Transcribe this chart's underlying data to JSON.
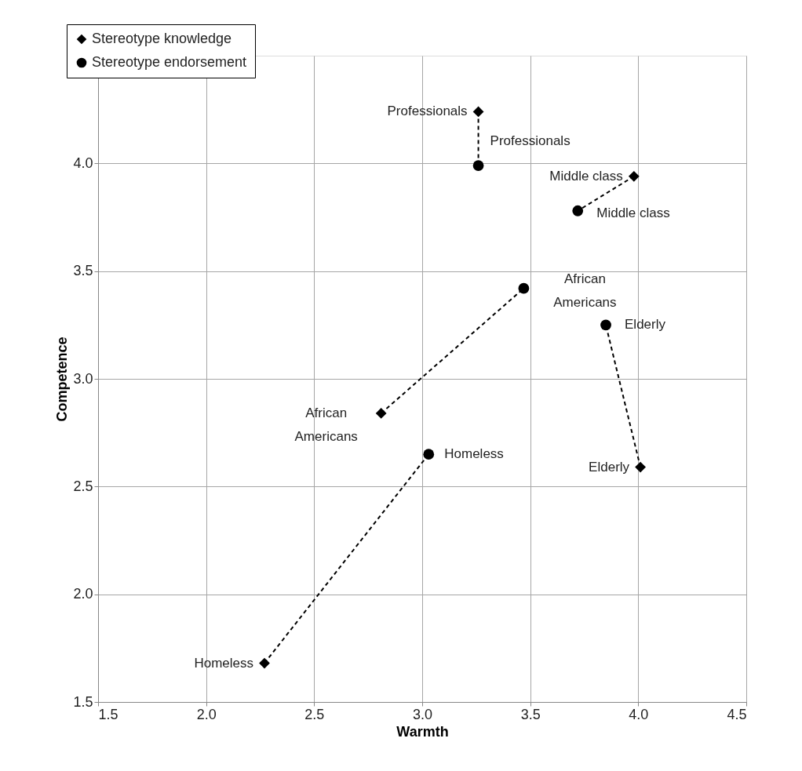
{
  "chart_data": {
    "type": "scatter",
    "xlabel": "Warmth",
    "ylabel": "Competence",
    "xlim": [
      1.5,
      4.5
    ],
    "xticks": [
      1.5,
      {
        "value": 2,
        "label": "2.0"
      },
      2.5,
      {
        "value": 3,
        "label": "3.0"
      },
      3.5,
      {
        "value": 4,
        "label": "4.0"
      },
      4.5
    ],
    "ylim": [
      1.5,
      4.5
    ],
    "yticks": [
      1.5,
      {
        "value": 2,
        "label": "2.0"
      },
      2.5,
      {
        "value": 3,
        "label": "3.0"
      },
      3.5,
      {
        "value": 4,
        "label": "4.0"
      }
    ],
    "grid": true,
    "legend": "top left",
    "series": [
      {
        "name": "Stereotype knowledge",
        "type": "scatter",
        "marker": "diamond",
        "color": "#000000",
        "x": [
          3.26,
          3.98,
          2.81,
          4.01,
          2.27
        ],
        "values": [
          4.24,
          3.94,
          2.84,
          2.59,
          1.68
        ]
      },
      {
        "name": "Stereotype endorsement",
        "type": "scatter",
        "marker": "circle",
        "color": "#000000",
        "x": [
          3.26,
          3.72,
          3.47,
          3.85,
          3.03
        ],
        "values": [
          3.99,
          3.78,
          3.42,
          3.25,
          2.65
        ]
      },
      {
        "type": "line",
        "line_style": "dashed",
        "color": "#000000",
        "x": [
          3.26,
          3.26
        ],
        "values": [
          4.24,
          3.99
        ]
      },
      {
        "type": "line",
        "line_style": "dashed",
        "color": "#000000",
        "x": [
          3.98,
          3.72
        ],
        "values": [
          3.94,
          3.78
        ]
      },
      {
        "type": "line",
        "line_style": "dashed",
        "color": "#000000",
        "x": [
          2.81,
          3.47
        ],
        "values": [
          2.84,
          3.42
        ]
      },
      {
        "type": "line",
        "line_style": "dashed",
        "color": "#000000",
        "x": [
          4.01,
          3.85
        ],
        "values": [
          2.59,
          3.25
        ]
      },
      {
        "type": "line",
        "line_style": "dashed",
        "color": "#000000",
        "x": [
          2.27,
          3.03
        ],
        "values": [
          1.68,
          2.65
        ]
      }
    ],
    "annotations": [
      {
        "text": "Professionals",
        "x": 3.26,
        "y": 4.24
      },
      {
        "text": "Middle class",
        "x": 3.98,
        "y": 3.94
      },
      {
        "text": "African\nAmericans",
        "x": 2.81,
        "y": 2.84
      },
      {
        "text": "Elderly",
        "x": 4.01,
        "y": 2.59
      },
      {
        "text": "Homeless",
        "x": 2.27,
        "y": 1.68
      },
      {
        "text": "Professionals",
        "x": 3.26,
        "y": 3.99
      },
      {
        "text": "Middle class",
        "x": 3.72,
        "y": 3.78
      },
      {
        "text": "African\nAmericans",
        "x": 3.47,
        "y": 3.42
      },
      {
        "text": "Elderly",
        "x": 3.85,
        "y": 3.25
      },
      {
        "text": "Homeless",
        "x": 3.03,
        "y": 2.65
      }
    ]
  }
}
